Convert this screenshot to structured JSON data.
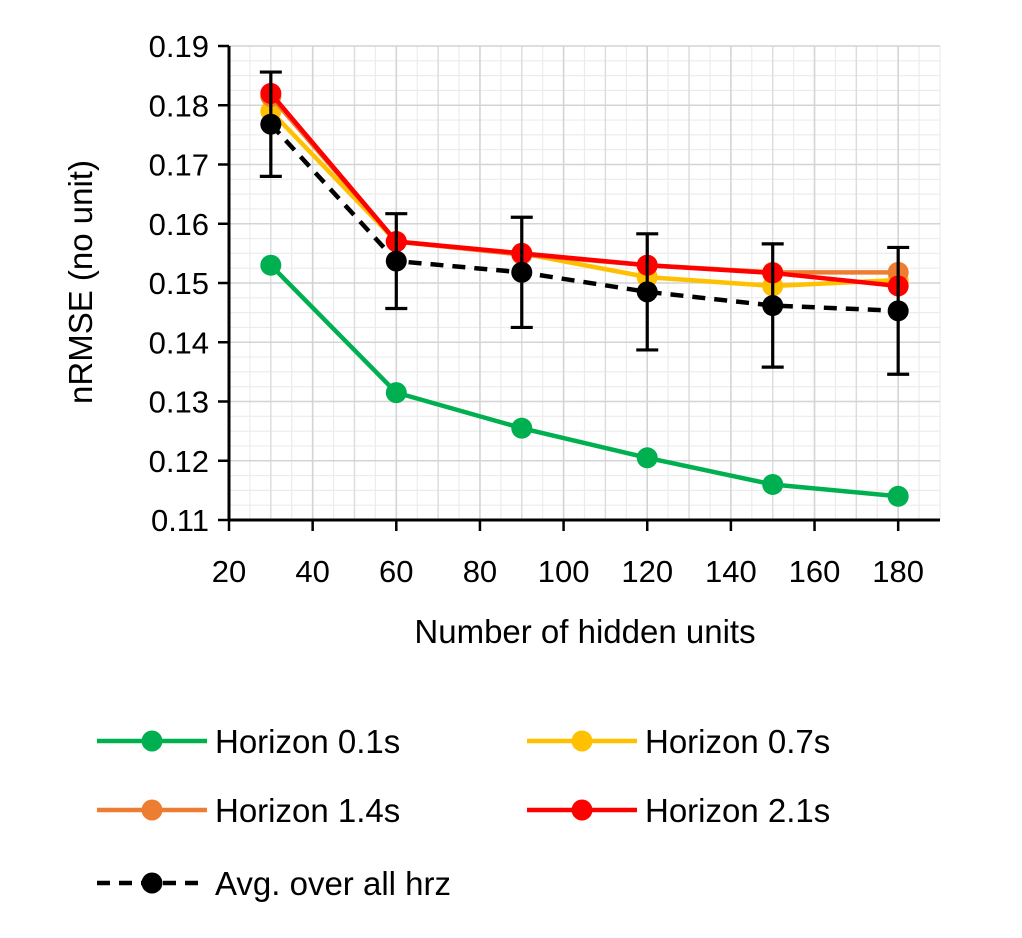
{
  "chart_data": {
    "type": "line",
    "title": "",
    "xlabel": "Number of hidden units",
    "ylabel": "nRMSE (no unit)",
    "xlim": [
      20,
      190
    ],
    "ylim": [
      0.11,
      0.19
    ],
    "xticks": [
      20,
      40,
      60,
      80,
      100,
      120,
      140,
      160,
      180
    ],
    "xtick_labels": [
      "20",
      "40",
      "60",
      "80",
      "100",
      "120",
      "140",
      "160",
      "180"
    ],
    "yticks": [
      0.11,
      0.12,
      0.13,
      0.14,
      0.15,
      0.16,
      0.17,
      0.18,
      0.19
    ],
    "ytick_labels": [
      "0.11",
      "0.12",
      "0.13",
      "0.14",
      "0.15",
      "0.16",
      "0.17",
      "0.18",
      "0.19"
    ],
    "grid": true,
    "legend_position": "bottom",
    "x": [
      30,
      60,
      90,
      120,
      150,
      180
    ],
    "series": [
      {
        "name": "Horizon 0.1s",
        "color": "#00b050",
        "dashed": false,
        "values": [
          0.153,
          0.1315,
          0.1255,
          0.1205,
          0.116,
          0.114
        ]
      },
      {
        "name": "Horizon 0.7s",
        "color": "#ffc000",
        "dashed": false,
        "values": [
          0.179,
          0.157,
          0.155,
          0.151,
          0.1495,
          0.1505
        ]
      },
      {
        "name": "Horizon 1.4s",
        "color": "#ed7d31",
        "dashed": false,
        "values": [
          0.1815,
          0.157,
          0.1548,
          0.153,
          0.1518,
          0.1518
        ]
      },
      {
        "name": "Horizon 2.1s",
        "color": "#ff0000",
        "dashed": false,
        "values": [
          0.182,
          0.157,
          0.155,
          0.153,
          0.1517,
          0.1495
        ]
      },
      {
        "name": "Avg. over all hrz",
        "color": "#000000",
        "dashed": true,
        "values": [
          0.1768,
          0.1537,
          0.1518,
          0.1485,
          0.1462,
          0.1453
        ],
        "error": [
          0.0088,
          0.008,
          0.0093,
          0.0098,
          0.0104,
          0.0107
        ]
      }
    ]
  }
}
